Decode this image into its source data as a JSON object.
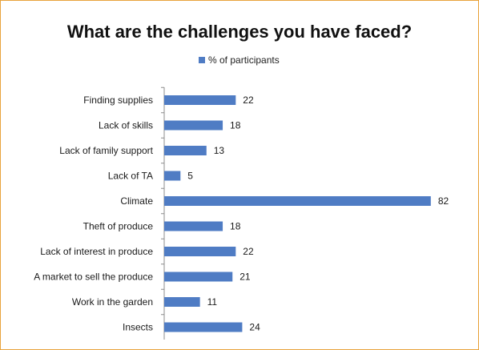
{
  "chart_data": {
    "type": "bar",
    "orientation": "horizontal",
    "title": "What are the challenges you have faced?",
    "legend": {
      "position": "top",
      "entries": [
        "% of participants"
      ]
    },
    "series": [
      {
        "name": "% of participants",
        "color": "#4f7cc4",
        "values": [
          22,
          18,
          13,
          5,
          82,
          18,
          22,
          21,
          11,
          24
        ]
      }
    ],
    "categories": [
      "Finding supplies",
      "Lack of skills",
      "Lack of family support",
      "Lack of TA",
      "Climate",
      "Theft of produce",
      "Lack of interest in produce",
      "A market to sell the produce",
      "Work in the garden",
      "Insects"
    ],
    "data_labels": true,
    "xlim": [
      0,
      85
    ],
    "grid": false
  }
}
